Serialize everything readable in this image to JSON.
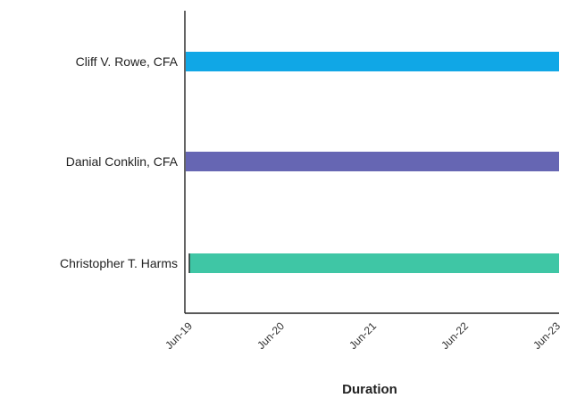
{
  "chart_data": {
    "type": "bar",
    "orientation": "horizontal",
    "title": "",
    "xlabel": "Duration",
    "ylabel": "",
    "x_ticks": [
      "Jun-19",
      "Jun-20",
      "Jun-21",
      "Jun-22",
      "Jun-23"
    ],
    "xlim": [
      "Jun-19",
      "Jun-23"
    ],
    "grid": false,
    "legend": "none",
    "bars": [
      {
        "label": "Cliff V. Rowe, CFA",
        "start": "Jun-19",
        "end": "Jun-23",
        "color": "#10a7e6"
      },
      {
        "label": "Danial Conklin, CFA",
        "start": "Jun-19",
        "end": "Jun-23",
        "color": "#6666b3"
      },
      {
        "label": "Christopher T. Harms",
        "start": "Jun-19",
        "end": "Jun-23",
        "color": "#3fc6a5"
      }
    ]
  }
}
